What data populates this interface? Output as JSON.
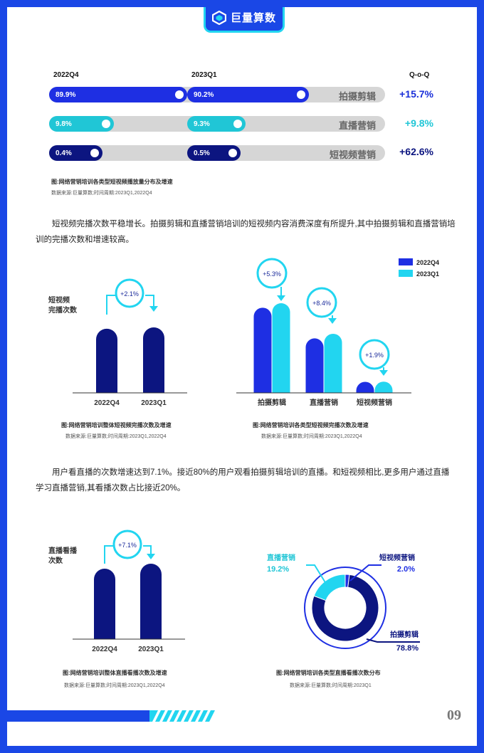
{
  "brand": {
    "name": "巨量算数",
    "primary": "#1a47e6",
    "accent": "#22d5f0",
    "dark": "#0c1580"
  },
  "top": {
    "col1": "2022Q4",
    "col2": "2023Q1",
    "col3": "Q-o-Q",
    "rows": [
      {
        "label": "拍摄剪辑",
        "q4": "89.9%",
        "q1": "90.2%",
        "qoq": "+15.7%"
      },
      {
        "label": "直播营销",
        "q4": "9.8%",
        "q1": "9.3%",
        "qoq": "+9.8%"
      },
      {
        "label": "短视频营销",
        "q4": "0.4%",
        "q1": "0.5%",
        "qoq": "+62.6%"
      }
    ],
    "caption": "图:网络营销培训各类型短视频播放量分布及增速",
    "source": "数据来源:巨量算数;时间周期:2023Q1,2022Q4"
  },
  "para1": "短视频完播次数平稳增长。拍摄剪辑和直播营销培训的短视频内容消费深度有所提升,其中拍摄剪辑和直播营销培训的完播次数和增速较高。",
  "para2": "用户看直播的次数增速达到7.1%。接近80%的用户观看拍摄剪辑培训的直播。和短视频相比,更多用户通过直播学习直播营销,其看播次数占比接近20%。",
  "captions": {
    "c2": "图:网络营销培训整体短视频完播次数及增速",
    "c2src": "数据来源:巨量算数;时间周期:2023Q1,2022Q4",
    "c3": "图:网络营销培训各类型短视频完播次数及增速",
    "c3src": "数据来源:巨量算数;时间周期:2023Q1,2022Q4",
    "c4": "图:网络营销培训整体直播看播次数及增速",
    "c4src": "数据来源:巨量算数;时间周期:2023Q1,2022Q4",
    "c5": "图:网络营销培训各类型直播看播次数分布",
    "c5src": "数据来源:巨量算数;时间周期:2023Q1"
  },
  "page_number": "09",
  "chart_data": [
    {
      "type": "bar",
      "categories": [
        "拍摄剪辑",
        "直播营销",
        "短视频营销"
      ],
      "series": [
        {
          "name": "2022Q4",
          "values": [
            89.9,
            9.8,
            0.4
          ]
        },
        {
          "name": "2023Q1",
          "values": [
            90.2,
            9.3,
            0.5
          ]
        }
      ],
      "qoq": [
        "+15.7%",
        "+9.8%",
        "+62.6%"
      ]
    },
    {
      "type": "bar",
      "ylabel": "短视频\n完播次数",
      "categories": [
        "2022Q4",
        "2023Q1"
      ],
      "values": [
        100,
        102.1
      ],
      "growth": "+2.1%"
    },
    {
      "type": "bar",
      "categories": [
        "拍摄剪辑",
        "直播营销",
        "短视频营销"
      ],
      "series": [
        {
          "name": "2022Q4",
          "values": [
            100,
            64,
            13
          ]
        },
        {
          "name": "2023Q1",
          "values": [
            105.3,
            69.4,
            13.2
          ]
        }
      ],
      "growth": [
        "+5.3%",
        "+8.4%",
        "+1.9%"
      ],
      "legend": "top-right"
    },
    {
      "type": "bar",
      "ylabel": "直播看播\n次数",
      "categories": [
        "2022Q4",
        "2023Q1"
      ],
      "values": [
        100,
        107.1
      ],
      "growth": "+7.1%"
    },
    {
      "type": "pie",
      "categories": [
        "拍摄剪辑",
        "直播营销",
        "短视频营销"
      ],
      "values": [
        78.8,
        19.2,
        2.0
      ],
      "labels": [
        "78.8%",
        "19.2%",
        "2.0%"
      ]
    }
  ]
}
